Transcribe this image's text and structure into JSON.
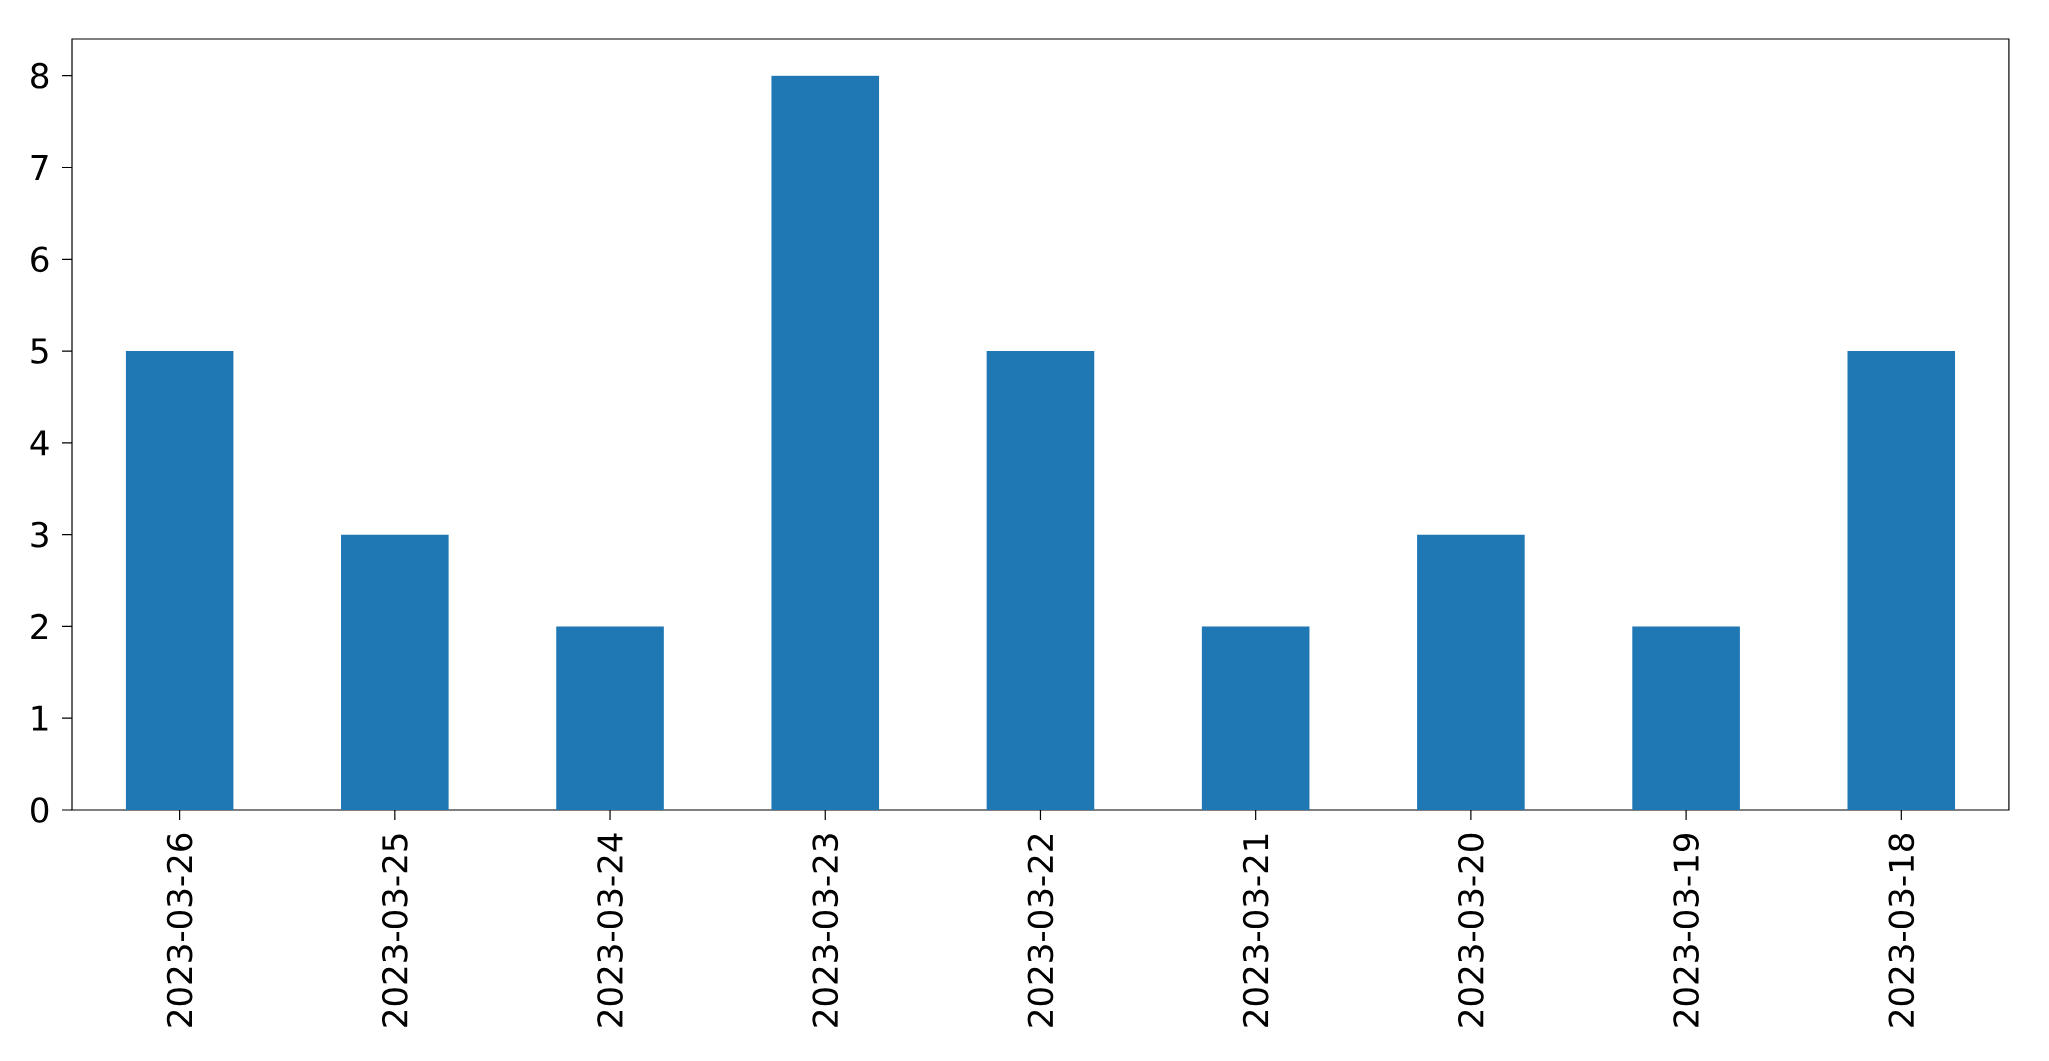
{
  "chart_data": {
    "type": "bar",
    "categories": [
      "2023-03-26",
      "2023-03-25",
      "2023-03-24",
      "2023-03-23",
      "2023-03-22",
      "2023-03-21",
      "2023-03-20",
      "2023-03-19",
      "2023-03-18"
    ],
    "values": [
      5,
      3,
      2,
      8,
      5,
      2,
      3,
      2,
      5
    ],
    "color": "#1f77b4",
    "ylim": [
      0,
      8.4
    ],
    "yticks": [
      0,
      1,
      2,
      3,
      4,
      5,
      6,
      7,
      8
    ]
  }
}
